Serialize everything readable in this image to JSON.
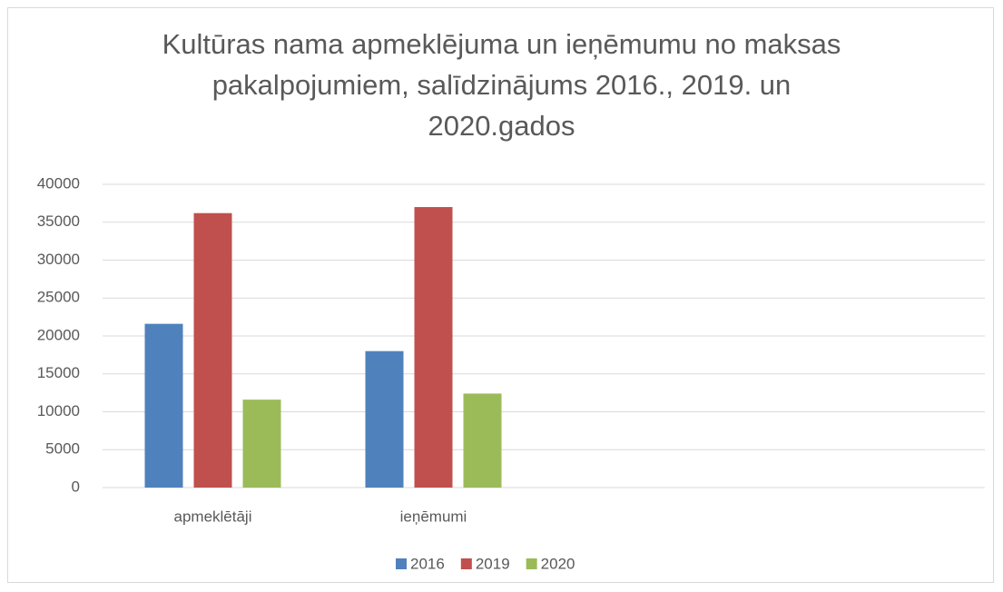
{
  "chart_data": {
    "type": "bar",
    "title": "Kultūras nama apmeklējuma un ieņēmumu no maksas\npakalpojumiem, salīdzinājums 2016., 2019. un\n2020.gados",
    "categories": [
      "apmeklētāji",
      "ieņēmumi",
      null,
      null
    ],
    "series": [
      {
        "name": "2016",
        "color": "#4f81bd",
        "values": [
          21600,
          18000,
          null,
          null
        ]
      },
      {
        "name": "2019",
        "color": "#c0504d",
        "values": [
          36200,
          37000,
          null,
          null
        ]
      },
      {
        "name": "2020",
        "color": "#9bbb59",
        "values": [
          11600,
          12400,
          null,
          null
        ]
      }
    ],
    "ylim": [
      0,
      40000
    ],
    "yticks": [
      0,
      5000,
      10000,
      15000,
      20000,
      25000,
      30000,
      35000,
      40000
    ],
    "grid": true,
    "legend": "bottom"
  }
}
